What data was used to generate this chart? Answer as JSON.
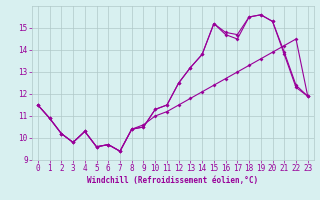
{
  "x": [
    0,
    1,
    2,
    3,
    4,
    5,
    6,
    7,
    8,
    9,
    10,
    11,
    12,
    13,
    14,
    15,
    16,
    17,
    18,
    19,
    20,
    21,
    22,
    23
  ],
  "line1": [
    11.5,
    10.9,
    10.2,
    9.8,
    10.3,
    9.6,
    9.7,
    9.4,
    10.4,
    10.5,
    11.3,
    11.5,
    12.5,
    13.2,
    13.8,
    15.2,
    14.8,
    14.7,
    15.5,
    15.6,
    15.3,
    13.9,
    12.4,
    11.9
  ],
  "line2": [
    11.5,
    10.9,
    10.2,
    9.8,
    10.3,
    9.6,
    9.7,
    9.4,
    10.4,
    10.5,
    11.3,
    11.5,
    12.5,
    13.2,
    13.8,
    15.2,
    14.7,
    14.5,
    15.5,
    15.6,
    15.3,
    13.8,
    12.3,
    11.9
  ],
  "line3": [
    11.5,
    10.9,
    10.2,
    9.8,
    10.3,
    9.6,
    9.7,
    9.4,
    10.4,
    10.6,
    11.0,
    11.2,
    11.5,
    11.8,
    12.1,
    12.4,
    12.7,
    13.0,
    13.3,
    13.6,
    13.9,
    14.2,
    14.5,
    11.9
  ],
  "line_color": "#990099",
  "bg_color": "#d8f0f0",
  "grid_color": "#b0c8c8",
  "xlabel": "Windchill (Refroidissement éolien,°C)",
  "ylim": [
    9.0,
    16.0
  ],
  "xlim": [
    -0.5,
    23.5
  ],
  "yticks": [
    9,
    10,
    11,
    12,
    13,
    14,
    15
  ],
  "xticks": [
    0,
    1,
    2,
    3,
    4,
    5,
    6,
    7,
    8,
    9,
    10,
    11,
    12,
    13,
    14,
    15,
    16,
    17,
    18,
    19,
    20,
    21,
    22,
    23
  ],
  "tick_fontsize": 5.5,
  "xlabel_fontsize": 5.5
}
